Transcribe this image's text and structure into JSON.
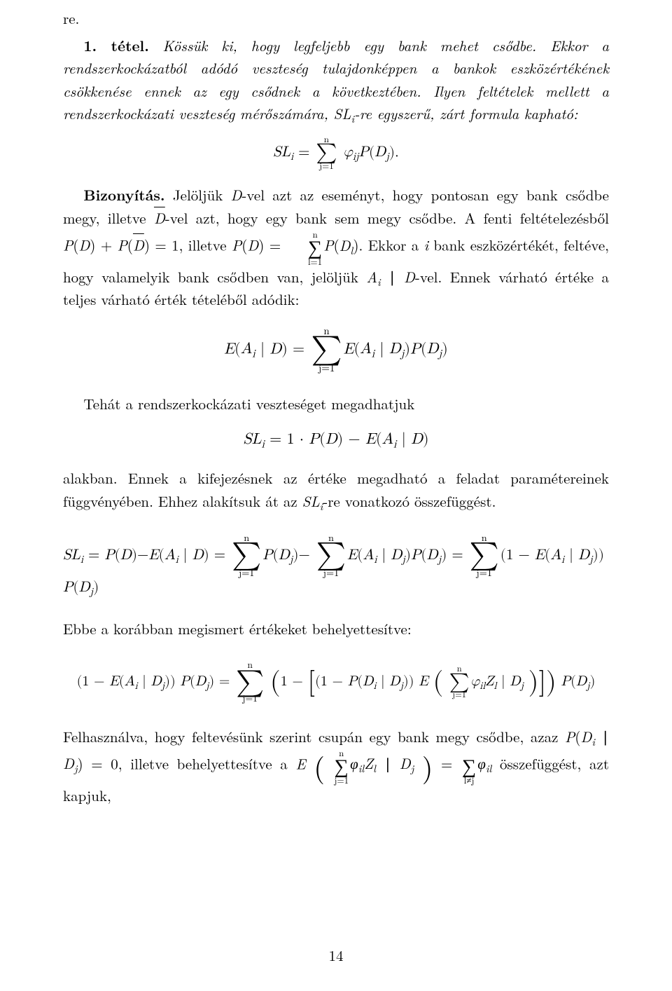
{
  "page_number": "14",
  "fragment_top": "re.",
  "theorem": {
    "label": "1. tétel.",
    "body": "Kössük ki, hogy legfeljebb egy bank mehet csődbe. Ekkor a rendszerkockázatból adódó veszteség tulajdonképpen a bankok eszközértékének csökkenése ennek az egy csődnek a következtében. Ilyen feltételek mellett a rendszerkockázati veszteség mérőszámára, SLᵢ-re egyszerű, zárt formula kapható:"
  },
  "proof_label": "Bizonyítás.",
  "proof_p1": "Jelöljük D-vel azt az eseményt, hogy pontosan egy bank csődbe megy, illetve D̄-vel azt, hogy egy bank sem megy csődbe. A fenti feltételezésből P(D) + P(D̄) = 1, illetve P(D) = ",
  "proof_p1b": " P(Dₗ). Ekkor a i bank eszközértékét, feltéve, hogy valamelyik bank csődben van, jelöljük Aᵢ ∣ D-vel. Ennek várható értéke a teljes várható érték tételéből adódik:",
  "proof_p2": "Tehát a rendszerkockázati veszteséget megadhatjuk",
  "proof_p3": "alakban. Ennek a kifejezésnek az értéke megadható a feladat paramétereinek függvényében. Ehhez alakítsuk át az SLᵢ-re vonatkozó összefüggést.",
  "proof_p4": "Ebbe a korábban megismert értékeket behelyettesítve:",
  "proof_p5a": "Felhasználva, hogy feltevésünk szerint csupán egy bank megy csődbe, azaz P(Dᵢ ∣ Dⱼ) = 0, illetve behelyettesítve a E",
  "proof_p5b": " összefüggést, azt kapjuk,",
  "formula_labels": {
    "SL": "SL",
    "E": "E",
    "A": "A",
    "D": "D",
    "P": "P",
    "Z": "Z",
    "phi": "φ",
    "n": "n",
    "j1": "j=1",
    "l1": "l=1",
    "lneqj": "l≠j",
    "i": "i",
    "j": "j",
    "l": "l"
  }
}
